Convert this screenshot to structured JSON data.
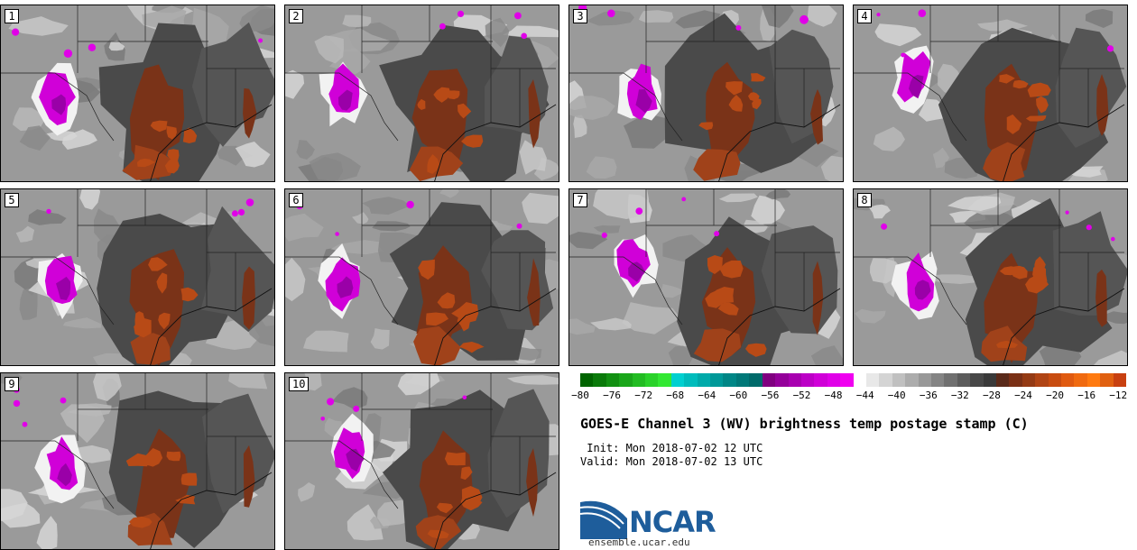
{
  "panels": [
    {
      "label": "1",
      "seed": 11
    },
    {
      "label": "2",
      "seed": 23
    },
    {
      "label": "3",
      "seed": 37
    },
    {
      "label": "4",
      "seed": 41
    },
    {
      "label": "5",
      "seed": 53
    },
    {
      "label": "6",
      "seed": 67
    },
    {
      "label": "7",
      "seed": 71
    },
    {
      "label": "8",
      "seed": 83
    },
    {
      "label": "9",
      "seed": 97
    },
    {
      "label": "10",
      "seed": 101
    }
  ],
  "colorbar": {
    "ticks": [
      "−80",
      "−76",
      "−72",
      "−68",
      "−64",
      "−60",
      "−56",
      "−52",
      "−48",
      "−44",
      "−40",
      "−36",
      "−32",
      "−28",
      "−24",
      "−20",
      "−16",
      "−12"
    ],
    "tick_values": [
      -80,
      -76,
      -72,
      -68,
      -64,
      -60,
      -56,
      -52,
      -48,
      -44,
      -40,
      -36,
      -32,
      -28,
      -24,
      -20,
      -16,
      -12
    ],
    "range": [
      -80,
      -11
    ],
    "colors": [
      "#006400",
      "#0a7a0a",
      "#129012",
      "#1aa61a",
      "#22bc22",
      "#2ad22a",
      "#33e833",
      "#00d0d0",
      "#00bcbc",
      "#00aaaa",
      "#009898",
      "#008686",
      "#007878",
      "#006a6a",
      "#800080",
      "#94009a",
      "#a800b0",
      "#bc00c6",
      "#d000d8",
      "#e000e8",
      "#f000f0",
      "#ffffff",
      "#e8e8e8",
      "#d4d4d4",
      "#c0c0c0",
      "#acacac",
      "#989898",
      "#848484",
      "#707070",
      "#5c5c5c",
      "#484848",
      "#3a3a3a",
      "#5a2a1a",
      "#7a3016",
      "#943a14",
      "#b04414",
      "#c84c10",
      "#e05a10",
      "#f06a10",
      "#ff7a10",
      "#e06010",
      "#c84010"
    ]
  },
  "title": "GOES-E Channel 3 (WV) brightness temp postage stamp (C)",
  "init": " Init: Mon 2018-07-02 12 UTC",
  "valid": "Valid: Mon 2018-07-02 13 UTC",
  "logo": {
    "text": "NCAR",
    "url": "ensemble.ucar.edu"
  }
}
